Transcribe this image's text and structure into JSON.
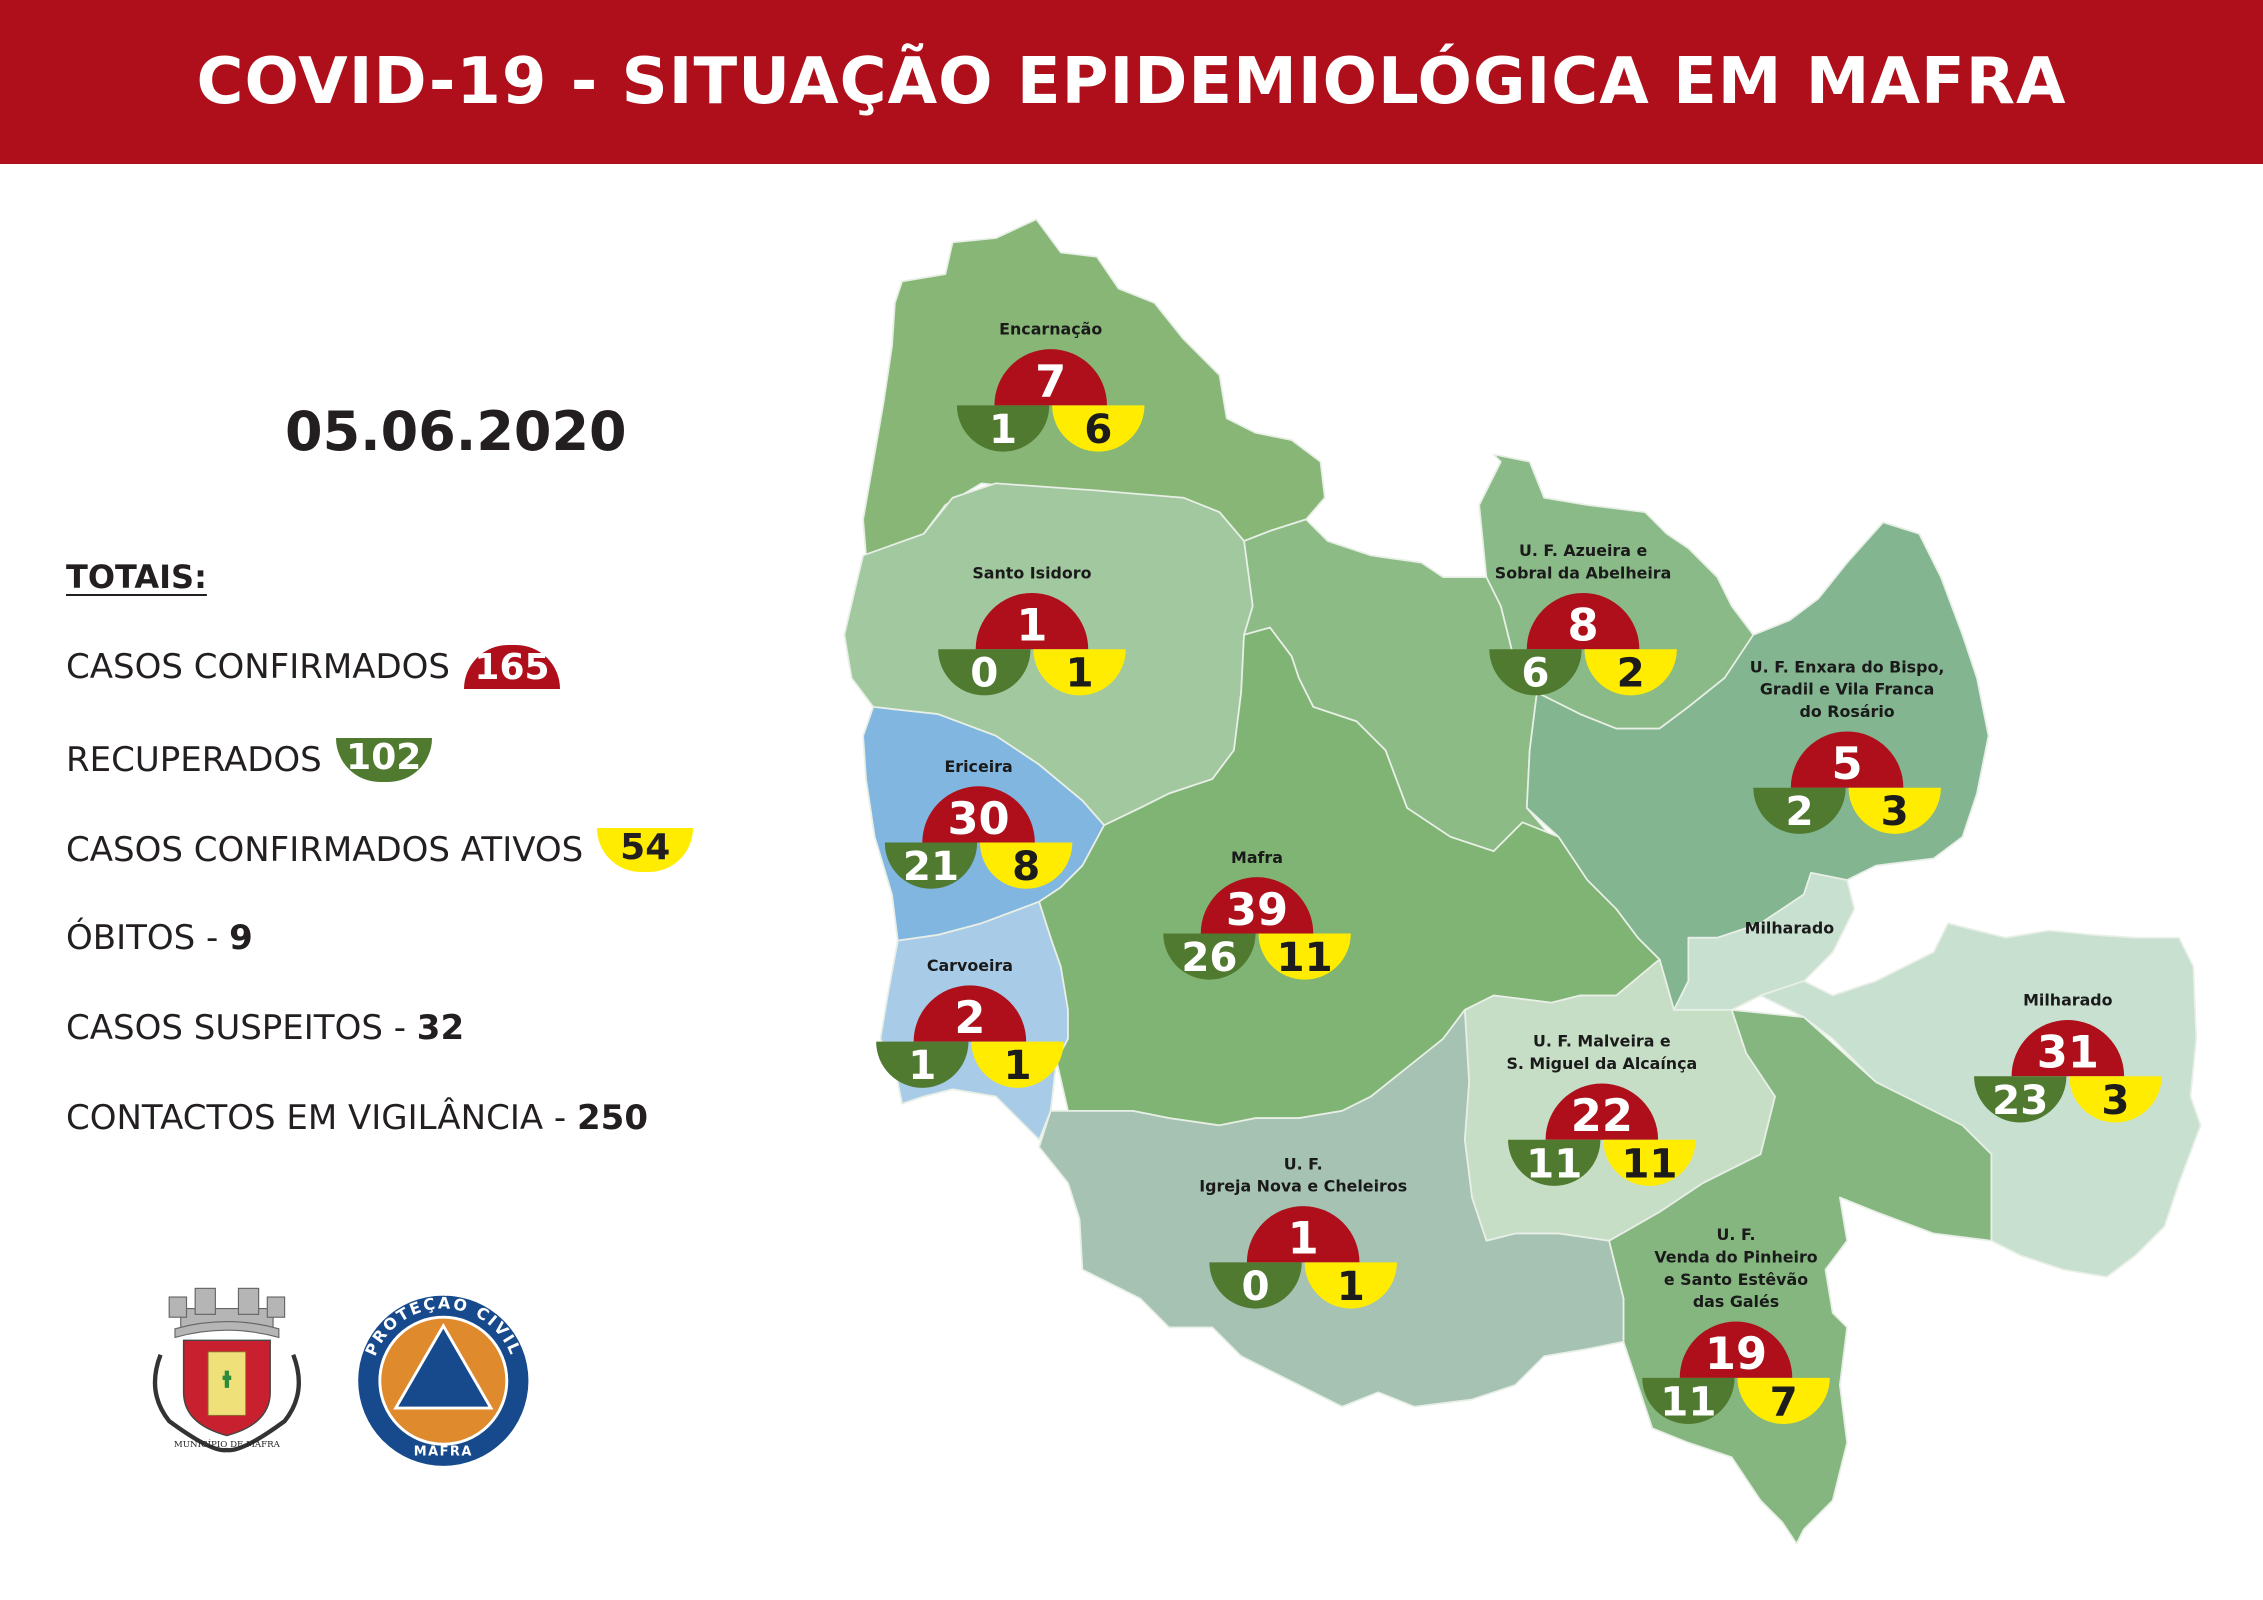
{
  "header": {
    "title": "COVID-19 - SITUAÇÃO EPIDEMIOLÓGICA EM MAFRA"
  },
  "date": "05.06.2020",
  "totals": {
    "heading": "TOTAIS:",
    "confirmed_label": "CASOS CONFIRMADOS",
    "confirmed": "165",
    "recovered_label": "RECUPERADOS",
    "recovered": "102",
    "active_label": "CASOS CONFIRMADOS ATIVOS",
    "active": "54",
    "deaths_label": "ÓBITOS - ",
    "deaths": "9",
    "suspects_label": "CASOS SUSPEITOS - ",
    "suspects": "32",
    "contacts_label": "CONTACTOS EM VIGILÂNCIA - ",
    "contacts": "250"
  },
  "colors": {
    "confirmed": "#ae0f1a",
    "recovered": "#4f7a2f",
    "active": "#ffec00",
    "header": "#ae0f1a"
  },
  "parishes": [
    {
      "id": "encarnacao",
      "label": [
        "Encarnação"
      ],
      "confirmed": "7",
      "recovered": "1",
      "active": "6",
      "fill": "#87b677"
    },
    {
      "id": "santo-isidoro",
      "label": [
        "Santo Isidoro"
      ],
      "confirmed": "1",
      "recovered": "0",
      "active": "1",
      "fill": "#a2c8a0"
    },
    {
      "id": "ericeira",
      "label": [
        "Ericeira"
      ],
      "confirmed": "30",
      "recovered": "21",
      "active": "8",
      "fill": "#80b6e0"
    },
    {
      "id": "carvoeira",
      "label": [
        "Carvoeira"
      ],
      "confirmed": "2",
      "recovered": "1",
      "active": "1",
      "fill": "#a8cbe8"
    },
    {
      "id": "mafra",
      "label": [
        "Mafra"
      ],
      "confirmed": "39",
      "recovered": "26",
      "active": "11",
      "fill": "#80b474"
    },
    {
      "id": "azueira",
      "label": [
        "U. F. Azueira e",
        "Sobral da Abelheira"
      ],
      "confirmed": "8",
      "recovered": "6",
      "active": "2",
      "fill": "#8aba88"
    },
    {
      "id": "enxara",
      "label": [
        "U. F. Enxara do Bispo,",
        "Gradil e Vila Franca",
        "do Rosário"
      ],
      "confirmed": "5",
      "recovered": "2",
      "active": "3",
      "fill": "#82b590"
    },
    {
      "id": "milharado",
      "label": [
        "Milharado"
      ],
      "confirmed": "31",
      "recovered": "23",
      "active": "3",
      "fill": "#c8e0cf"
    },
    {
      "id": "malveira",
      "label": [
        "U. F. Malveira e",
        "S. Miguel da Alcaínça"
      ],
      "confirmed": "22",
      "recovered": "11",
      "active": "11",
      "fill": "#c7dec6"
    },
    {
      "id": "igreja-nova",
      "label": [
        "U. F.",
        "Igreja Nova e Cheleiros"
      ],
      "confirmed": "1",
      "recovered": "0",
      "active": "1",
      "fill": "#a5c2b3"
    },
    {
      "id": "venda-pinheiro",
      "label": [
        "U. F.",
        "Venda do Pinheiro",
        "e Santo Estêvão",
        "das Galés"
      ],
      "confirmed": "19",
      "recovered": "11",
      "active": "7",
      "fill": "#85b67f"
    }
  ],
  "milharado_enclave_label": "Milharado",
  "logos": {
    "municipio": "MUNICÍPIO DE MAFRA",
    "protecao_top": "PROTEÇÃO CIVIL",
    "protecao_bottom": "MAFRA"
  }
}
